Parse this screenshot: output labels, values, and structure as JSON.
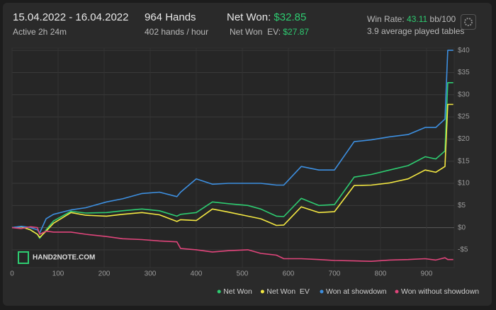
{
  "header": {
    "date_range": "15.04.2022 - 16.04.2022",
    "active": "Active 2h 24m",
    "hands": "964 Hands",
    "hands_per_hour": "402 hands / hour",
    "net_won_label": "Net Won:",
    "net_won_value": "$32.85",
    "net_won_ev_label": "Net Won  EV:",
    "net_won_ev_value": "$27.87",
    "win_rate_label": "Win Rate:",
    "win_rate_value": "43.11",
    "win_rate_unit": "bb/100",
    "tables": "3.9 average played tables"
  },
  "chart_data": {
    "type": "line",
    "watermark": "HAND2NOTE.COM",
    "x": [
      0,
      20,
      40,
      55,
      60,
      74,
      90,
      128,
      160,
      205,
      240,
      282,
      320,
      358,
      366,
      400,
      435,
      470,
      512,
      540,
      574,
      590,
      628,
      666,
      700,
      743,
      780,
      820,
      860,
      897,
      920,
      940,
      946,
      958
    ],
    "series": [
      {
        "name": "Net Won",
        "color": "#2ecc71",
        "values": [
          0,
          0.2,
          -0.5,
          -1.5,
          -2.4,
          -0.5,
          1.5,
          3.7,
          3.3,
          3.4,
          3.8,
          4.2,
          3.8,
          2.6,
          3,
          3.4,
          5.8,
          5.4,
          5,
          4.2,
          2.6,
          2.5,
          6.6,
          5,
          5.2,
          11.4,
          12,
          13,
          14,
          16,
          15.5,
          17.3,
          32.7,
          32.7
        ]
      },
      {
        "name": "Net Won  EV",
        "color": "#f4e842",
        "values": [
          0,
          0.2,
          -0.5,
          -1.5,
          -2.2,
          -0.8,
          1,
          3.4,
          2.8,
          2.6,
          3,
          3.4,
          2.9,
          1.4,
          1.8,
          1.6,
          4.2,
          3.5,
          2.6,
          2,
          0.5,
          0.6,
          4.7,
          3.4,
          3.6,
          9.5,
          9.6,
          10.1,
          11,
          13,
          12.5,
          13.8,
          27.8,
          27.8
        ]
      },
      {
        "name": "Won at showdown",
        "color": "#3d8fe0",
        "values": [
          0,
          0.3,
          0,
          -0.5,
          -1.2,
          2,
          3,
          4,
          4.5,
          5.8,
          6.5,
          7.7,
          8,
          7,
          8,
          11,
          9.8,
          10,
          10,
          10,
          9.6,
          9.6,
          13.8,
          13,
          13,
          19.4,
          19.8,
          20.5,
          21,
          22.6,
          22.6,
          24.5,
          40,
          40
        ]
      },
      {
        "name": "Won without showdown",
        "color": "#e0457b",
        "values": [
          0,
          -0.2,
          0.2,
          0,
          -1.5,
          -0.8,
          -1,
          -1,
          -1.5,
          -2,
          -2.5,
          -2.7,
          -3,
          -3.2,
          -4.7,
          -5,
          -5.5,
          -5.2,
          -5,
          -5.8,
          -6.2,
          -7,
          -7,
          -7.2,
          -7.4,
          -7.5,
          -7.6,
          -7.3,
          -7.2,
          -7,
          -7.3,
          -6.8,
          -7.2,
          -7.2
        ]
      }
    ],
    "xlim": [
      0,
      960
    ],
    "ylim": [
      -9,
      40.5
    ],
    "xticks": [
      0,
      100,
      200,
      300,
      400,
      500,
      600,
      700,
      800,
      900
    ],
    "yticks": [
      {
        "value": -5,
        "label": "-$5"
      },
      {
        "value": 0,
        "label": "$0"
      },
      {
        "value": 5,
        "label": "$5"
      },
      {
        "value": 10,
        "label": "$10"
      },
      {
        "value": 15,
        "label": "$15"
      },
      {
        "value": 20,
        "label": "$20"
      },
      {
        "value": 25,
        "label": "$25"
      },
      {
        "value": 30,
        "label": "$30"
      },
      {
        "value": 35,
        "label": "$35"
      },
      {
        "value": 40,
        "label": "$40"
      }
    ],
    "grid": true,
    "legend_position": "bottom-right"
  }
}
